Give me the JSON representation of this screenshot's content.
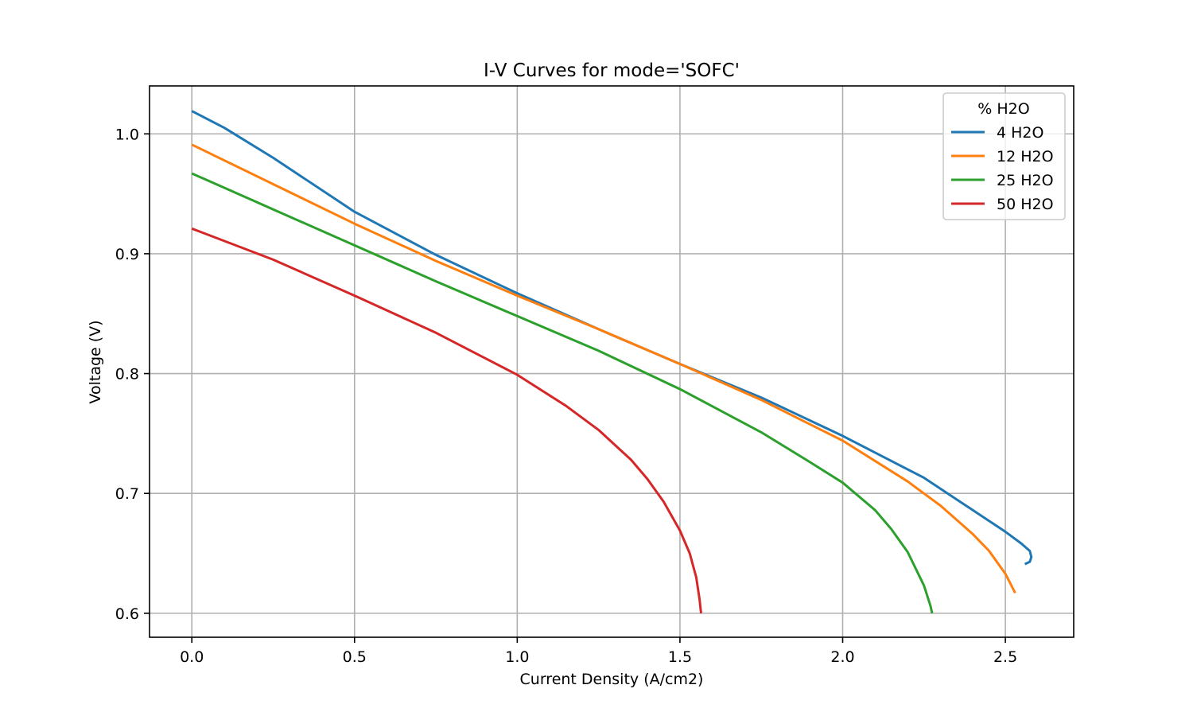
{
  "chart_data": {
    "type": "line",
    "title": "I-V Curves for mode='SOFC'",
    "xlabel": "Current Density (A/cm2)",
    "ylabel": "Voltage (V)",
    "xlim": [
      -0.13,
      2.71
    ],
    "ylim": [
      0.58,
      1.04
    ],
    "xticks": [
      0.0,
      0.5,
      1.0,
      1.5,
      2.0,
      2.5
    ],
    "xtick_labels": [
      "0.0",
      "0.5",
      "1.0",
      "1.5",
      "2.0",
      "2.5"
    ],
    "yticks": [
      0.6,
      0.7,
      0.8,
      0.9,
      1.0
    ],
    "ytick_labels": [
      "0.6",
      "0.7",
      "0.8",
      "0.9",
      "1.0"
    ],
    "grid": true,
    "legend": {
      "title": "% H2O",
      "placement": "top-right"
    },
    "series": [
      {
        "name": "4 H2O",
        "color": "#1f77b4",
        "points": [
          [
            0.0,
            1.019
          ],
          [
            0.1,
            1.005
          ],
          [
            0.25,
            0.98
          ],
          [
            0.5,
            0.935
          ],
          [
            0.75,
            0.899
          ],
          [
            1.0,
            0.867
          ],
          [
            1.25,
            0.837
          ],
          [
            1.5,
            0.808
          ],
          [
            1.75,
            0.78
          ],
          [
            2.0,
            0.748
          ],
          [
            2.25,
            0.713
          ],
          [
            2.4,
            0.686
          ],
          [
            2.5,
            0.668
          ],
          [
            2.55,
            0.658
          ],
          [
            2.575,
            0.652
          ],
          [
            2.58,
            0.647
          ],
          [
            2.575,
            0.643
          ],
          [
            2.56,
            0.641
          ]
        ]
      },
      {
        "name": "12 H2O",
        "color": "#ff7f0e",
        "points": [
          [
            0.0,
            0.991
          ],
          [
            0.25,
            0.958
          ],
          [
            0.5,
            0.925
          ],
          [
            0.75,
            0.894
          ],
          [
            1.0,
            0.865
          ],
          [
            1.25,
            0.837
          ],
          [
            1.5,
            0.808
          ],
          [
            1.75,
            0.778
          ],
          [
            2.0,
            0.744
          ],
          [
            2.2,
            0.71
          ],
          [
            2.3,
            0.69
          ],
          [
            2.4,
            0.666
          ],
          [
            2.45,
            0.652
          ],
          [
            2.5,
            0.633
          ],
          [
            2.53,
            0.617
          ]
        ]
      },
      {
        "name": "25 H2O",
        "color": "#2ca02c",
        "points": [
          [
            0.0,
            0.967
          ],
          [
            0.25,
            0.937
          ],
          [
            0.5,
            0.907
          ],
          [
            0.75,
            0.877
          ],
          [
            1.0,
            0.848
          ],
          [
            1.25,
            0.819
          ],
          [
            1.5,
            0.787
          ],
          [
            1.75,
            0.751
          ],
          [
            1.9,
            0.726
          ],
          [
            2.0,
            0.709
          ],
          [
            2.1,
            0.686
          ],
          [
            2.15,
            0.67
          ],
          [
            2.2,
            0.651
          ],
          [
            2.25,
            0.623
          ],
          [
            2.27,
            0.606
          ],
          [
            2.275,
            0.6
          ]
        ]
      },
      {
        "name": "50 H2O",
        "color": "#d62728",
        "points": [
          [
            0.0,
            0.921
          ],
          [
            0.25,
            0.895
          ],
          [
            0.5,
            0.865
          ],
          [
            0.75,
            0.834
          ],
          [
            1.0,
            0.799
          ],
          [
            1.15,
            0.773
          ],
          [
            1.25,
            0.753
          ],
          [
            1.35,
            0.728
          ],
          [
            1.4,
            0.712
          ],
          [
            1.45,
            0.693
          ],
          [
            1.5,
            0.669
          ],
          [
            1.53,
            0.65
          ],
          [
            1.55,
            0.63
          ],
          [
            1.56,
            0.612
          ],
          [
            1.565,
            0.6
          ]
        ]
      }
    ]
  }
}
